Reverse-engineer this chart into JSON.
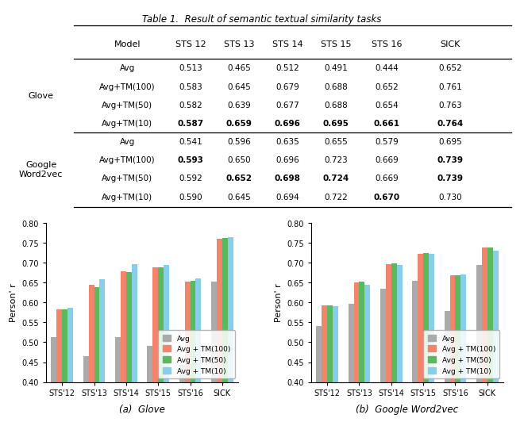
{
  "title": "Table 1.  Result of semantic textual similarity tasks",
  "table_headers": [
    "Model",
    "STS 12",
    "STS 13",
    "STS 14",
    "STS 15",
    "STS 16",
    "SICK"
  ],
  "table_groups": [
    {
      "group_label": "Glove",
      "rows": [
        {
          "model": "Avg",
          "values": [
            0.513,
            0.465,
            0.512,
            0.491,
            0.444,
            0.652
          ],
          "bold": [
            false,
            false,
            false,
            false,
            false,
            false
          ]
        },
        {
          "model": "Avg+TM(100)",
          "values": [
            0.583,
            0.645,
            0.679,
            0.688,
            0.652,
            0.761
          ],
          "bold": [
            false,
            false,
            false,
            false,
            false,
            false
          ]
        },
        {
          "model": "Avg+TM(50)",
          "values": [
            0.582,
            0.639,
            0.677,
            0.688,
            0.654,
            0.763
          ],
          "bold": [
            false,
            false,
            false,
            false,
            false,
            false
          ]
        },
        {
          "model": "Avg+TM(10)",
          "values": [
            0.587,
            0.659,
            0.696,
            0.695,
            0.661,
            0.764
          ],
          "bold": [
            true,
            true,
            true,
            true,
            true,
            true
          ]
        }
      ]
    },
    {
      "group_label": "Google\nWord2vec",
      "rows": [
        {
          "model": "Avg",
          "values": [
            0.541,
            0.596,
            0.635,
            0.655,
            0.579,
            0.695
          ],
          "bold": [
            false,
            false,
            false,
            false,
            false,
            false
          ]
        },
        {
          "model": "Avg+TM(100)",
          "values": [
            0.593,
            0.65,
            0.696,
            0.723,
            0.669,
            0.739
          ],
          "bold": [
            true,
            false,
            false,
            false,
            false,
            true
          ]
        },
        {
          "model": "Avg+TM(50)",
          "values": [
            0.592,
            0.652,
            0.698,
            0.724,
            0.669,
            0.739
          ],
          "bold": [
            false,
            true,
            true,
            true,
            false,
            true
          ]
        },
        {
          "model": "Avg+TM(10)",
          "values": [
            0.59,
            0.645,
            0.694,
            0.722,
            0.67,
            0.73
          ],
          "bold": [
            false,
            false,
            false,
            false,
            true,
            false
          ]
        }
      ]
    }
  ],
  "chart_categories": [
    "STS'12",
    "STS'13",
    "STS'14",
    "STS'15",
    "STS'16",
    "SICK"
  ],
  "glove_data": {
    "Avg": [
      0.513,
      0.465,
      0.512,
      0.491,
      0.444,
      0.652
    ],
    "Avg+TM(100)": [
      0.583,
      0.645,
      0.679,
      0.688,
      0.652,
      0.761
    ],
    "Avg+TM(50)": [
      0.582,
      0.639,
      0.677,
      0.688,
      0.654,
      0.763
    ],
    "Avg+TM(10)": [
      0.587,
      0.659,
      0.696,
      0.695,
      0.661,
      0.764
    ]
  },
  "word2vec_data": {
    "Avg": [
      0.541,
      0.596,
      0.635,
      0.655,
      0.579,
      0.695
    ],
    "Avg+TM(100)": [
      0.593,
      0.65,
      0.696,
      0.723,
      0.669,
      0.739
    ],
    "Avg+TM(50)": [
      0.592,
      0.652,
      0.698,
      0.724,
      0.669,
      0.739
    ],
    "Avg+TM(10)": [
      0.59,
      0.645,
      0.694,
      0.722,
      0.67,
      0.73
    ]
  },
  "bar_colors": {
    "Avg": "#aaaaaa",
    "Avg+TM(100)": "#f4836c",
    "Avg+TM(50)": "#5cb85c",
    "Avg+TM(10)": "#87ceeb"
  },
  "legend_labels": [
    "Avg",
    "Avg + TM(100)",
    "Avg + TM(50)",
    "Avg + TM(10)"
  ],
  "legend_keys": [
    "Avg",
    "Avg+TM(100)",
    "Avg+TM(50)",
    "Avg+TM(10)"
  ],
  "ylim": [
    0.4,
    0.8
  ],
  "yticks": [
    0.4,
    0.45,
    0.5,
    0.55,
    0.6,
    0.65,
    0.7,
    0.75,
    0.8
  ],
  "ylabel": "Person' r",
  "subtitle_a": "(a)  Glove",
  "subtitle_b": "(b)  Google Word2vec"
}
